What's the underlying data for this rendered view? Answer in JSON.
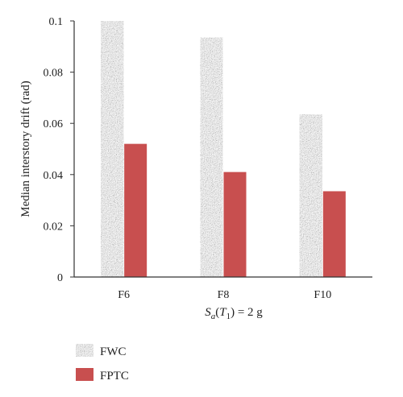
{
  "chart_data": {
    "type": "bar",
    "categories": [
      "F6",
      "F8",
      "F10"
    ],
    "series": [
      {
        "name": "FWC",
        "values": [
          0.1,
          0.0935,
          0.0635
        ],
        "color": "#9a9a9a",
        "fill": "speckled-gray"
      },
      {
        "name": "FPTC",
        "values": [
          0.052,
          0.041,
          0.0335
        ],
        "color": "#c84f4f"
      }
    ],
    "ylabel": "Median interstory drift (rad)",
    "xlabel": {
      "S": "S",
      "sub_a": "a",
      "open": "(",
      "T": "T",
      "sub_1": "1",
      "close": ")",
      "rest": " = 2 g"
    },
    "ylim": [
      0,
      0.1
    ],
    "yticks": [
      {
        "v": 0,
        "label": "0"
      },
      {
        "v": 0.02,
        "label": "0.02"
      },
      {
        "v": 0.04,
        "label": "0.04"
      },
      {
        "v": 0.06,
        "label": "0.06"
      },
      {
        "v": 0.08,
        "label": "0.08"
      },
      {
        "v": 0.1,
        "label": "0.1"
      }
    ],
    "grid": false,
    "legend_position": "bottom-left"
  }
}
